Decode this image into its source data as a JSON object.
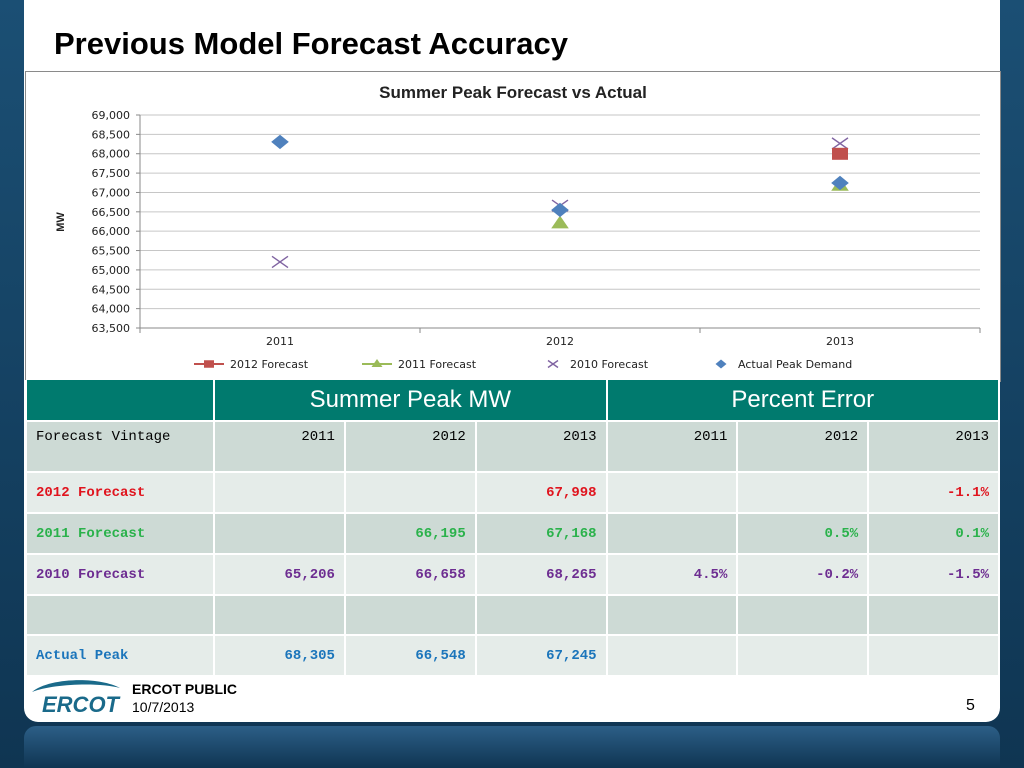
{
  "slide": {
    "title": "Previous Model Forecast Accuracy",
    "footer_label": "ERCOT PUBLIC",
    "footer_date": "10/7/2013",
    "page_number": "5",
    "logo_text": "ERCOT"
  },
  "chart_data": {
    "type": "scatter",
    "title": "Summer Peak Forecast vs Actual",
    "xlabel": "",
    "ylabel": "MW",
    "categories": [
      "2011",
      "2012",
      "2013"
    ],
    "ylim": [
      63500,
      69000
    ],
    "yticks": [
      "63,500",
      "64,000",
      "64,500",
      "65,000",
      "65,500",
      "66,000",
      "66,500",
      "67,000",
      "67,500",
      "68,000",
      "68,500",
      "69,000"
    ],
    "ytick_values": [
      63500,
      64000,
      64500,
      65000,
      65500,
      66000,
      66500,
      67000,
      67500,
      68000,
      68500,
      69000
    ],
    "grid": true,
    "legend": "bottom",
    "series": [
      {
        "name": "2012 Forecast",
        "marker": "square",
        "color": "#c0504d",
        "values": [
          null,
          null,
          67998
        ]
      },
      {
        "name": "2011 Forecast",
        "marker": "triangle",
        "color": "#9bbb59",
        "values": [
          null,
          66195,
          67168
        ]
      },
      {
        "name": "2010 Forecast",
        "marker": "x",
        "color": "#8064a2",
        "values": [
          65206,
          66658,
          68265
        ]
      },
      {
        "name": "Actual Peak Demand",
        "marker": "diamond",
        "color": "#4f81bd",
        "values": [
          68305,
          66548,
          67245
        ]
      }
    ]
  },
  "table": {
    "group_headers": [
      "",
      "Summer Peak MW",
      "Percent Error"
    ],
    "sub_headers": [
      "Forecast Vintage",
      "2011",
      "2012",
      "2013",
      "2011",
      "2012",
      "2013"
    ],
    "rows": [
      {
        "cells": [
          "2012 Forecast",
          "",
          "",
          "67,998",
          "",
          "",
          "-1.1%"
        ],
        "color": "#e0141e"
      },
      {
        "cells": [
          "2011 Forecast",
          "",
          "66,195",
          "67,168",
          "",
          "0.5%",
          "0.1%"
        ],
        "color": "#2ab24b"
      },
      {
        "cells": [
          "2010 Forecast",
          "65,206",
          "66,658",
          "68,265",
          "4.5%",
          "-0.2%",
          "-1.5%"
        ],
        "color": "#6d2d91"
      },
      {
        "cells": [
          "",
          "",
          "",
          "",
          "",
          "",
          ""
        ],
        "color": "#000000"
      },
      {
        "cells": [
          "Actual Peak",
          "68,305",
          "66,548",
          "67,245",
          "",
          "",
          ""
        ],
        "color": "#1b75bb"
      }
    ]
  }
}
